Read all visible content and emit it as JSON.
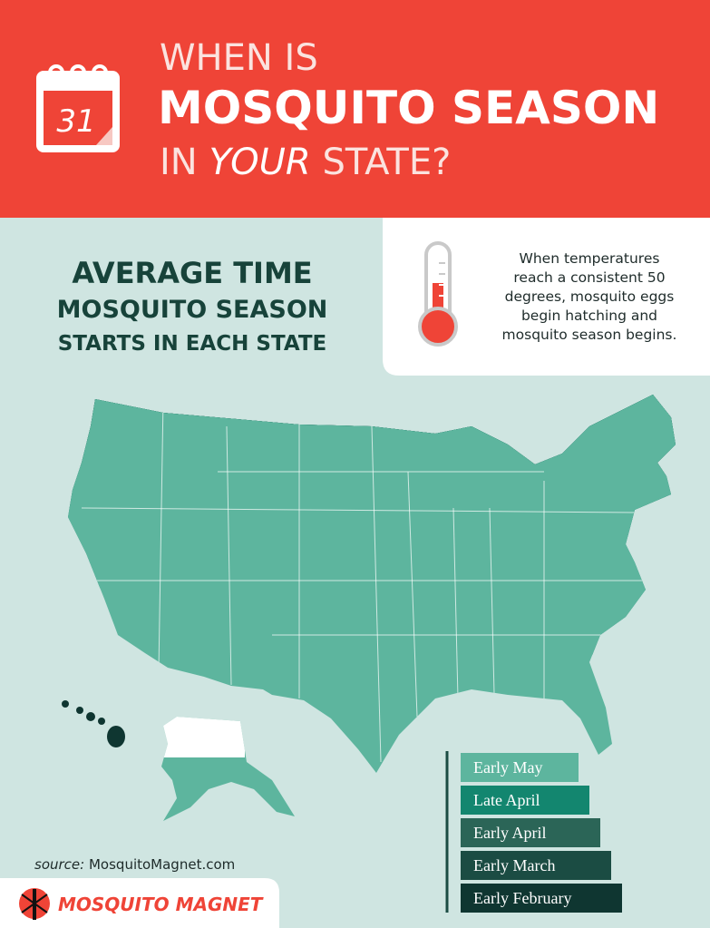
{
  "header": {
    "calendar_day": "31",
    "line1": "WHEN IS",
    "line2": "MOSQUITO SEASON",
    "line3_pre": "IN",
    "line3_em": "YOUR",
    "line3_post": "STATE?"
  },
  "subtitle": [
    "AVERAGE TIME",
    "MOSQUITO SEASON",
    "STARTS IN EACH STATE"
  ],
  "note": [
    "When temperatures",
    "reach a consistent 50",
    "degrees, mosquito eggs",
    "begin hatching and",
    "mosquito season begins."
  ],
  "legend": [
    {
      "label": "Early May",
      "color": "#5db59e"
    },
    {
      "label": "Late April",
      "color": "#13866f"
    },
    {
      "label": "Early April",
      "color": "#2b6557"
    },
    {
      "label": "Early March",
      "color": "#1b4c43"
    },
    {
      "label": "Early February",
      "color": "#0f3631"
    }
  ],
  "source": {
    "prefix": "source:",
    "site": "MosquitoMagnet.com"
  },
  "logo": "MOSQUITO MAGNET"
}
